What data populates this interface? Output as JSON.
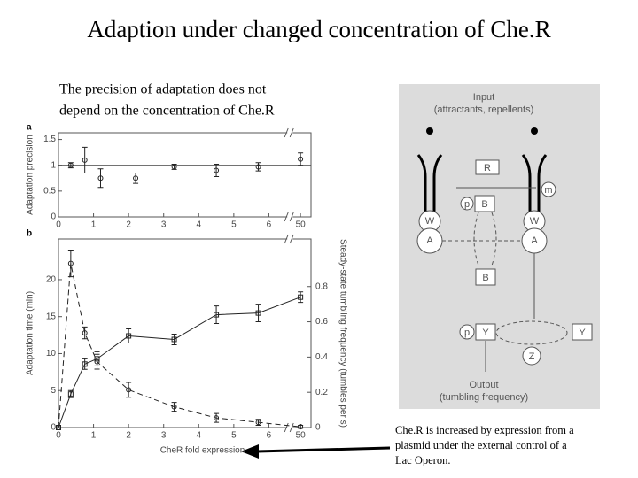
{
  "slide": {
    "title": "Adaption under changed concentration of Che.R",
    "caption_top": [
      "The precision of adaptation does not",
      "depend on the concentration of Che.R"
    ],
    "caption_bottom": [
      "Che.R is increased by expression from a",
      "plasmid under the external control of a",
      "Lac Operon."
    ]
  },
  "chart_data": [
    {
      "type": "line",
      "panel": "a",
      "ylabel": "Adaptation precision",
      "x": [
        0.35,
        0.75,
        1.2,
        2.2,
        3.3,
        4.5,
        5.7,
        50
      ],
      "xlim": [
        0,
        50.3
      ],
      "x_break": [
        6.5,
        49.8
      ],
      "xticks": [
        0,
        1,
        2,
        3,
        4,
        5,
        6,
        50
      ],
      "ylim": [
        0,
        1.63
      ],
      "yticks": [
        0,
        0.5,
        1,
        1.5
      ],
      "reference_line": 1,
      "series": [
        {
          "color": "#222222",
          "marker": "circle",
          "line": "none",
          "values": [
            1.0,
            1.1,
            0.75,
            0.75,
            0.97,
            0.9,
            0.97,
            1.12
          ],
          "errors": [
            0.05,
            0.25,
            0.18,
            0.1,
            0.05,
            0.12,
            0.08,
            0.12
          ]
        }
      ]
    },
    {
      "type": "line",
      "panel": "b",
      "ylabel": "Adaptation time (min)",
      "y2label": "Steady-state tumbling frequency (tumbles per s)",
      "xlabel": "CheR fold expression",
      "x": [
        0,
        0.35,
        0.75,
        1.1,
        2.0,
        3.3,
        4.5,
        5.7,
        50
      ],
      "xlim": [
        0,
        50.3
      ],
      "x_break": [
        6.5,
        49.8
      ],
      "xticks": [
        0,
        1,
        2,
        3,
        4,
        5,
        6,
        50
      ],
      "ylim": [
        0,
        25.5
      ],
      "yticks": [
        0,
        5,
        10,
        15,
        20
      ],
      "y2lim": [
        0,
        1.07
      ],
      "y2ticks": [
        0,
        0.2,
        0.4,
        0.6,
        0.8
      ],
      "series": [
        {
          "color": "#222222",
          "marker": "circle",
          "line": "dashed",
          "values": [
            0,
            22.2,
            12.8,
            8.9,
            5.1,
            2.8,
            1.3,
            0.7,
            0.1
          ],
          "errors": [
            0,
            1.8,
            0.8,
            1,
            1,
            0.6,
            0.6,
            0.4,
            0.2
          ]
        },
        {
          "color": "#222222",
          "marker": "square",
          "line": "solid",
          "axis": "y2",
          "values": [
            0,
            0.19,
            0.36,
            0.39,
            0.52,
            0.5,
            0.64,
            0.65,
            0.74
          ],
          "errors": [
            0,
            0.02,
            0.03,
            0.04,
            0.04,
            0.03,
            0.05,
            0.05,
            0.03
          ]
        }
      ]
    }
  ],
  "diagram": {
    "input": "Input",
    "input_sub": "(attractants, repellents)",
    "nodes": [
      "R",
      "m",
      "p",
      "B",
      "W",
      "A",
      "W",
      "A",
      "B",
      "p",
      "Y",
      "Y",
      "Z"
    ],
    "output": "Output",
    "output_sub": "(tumbling frequency)"
  }
}
